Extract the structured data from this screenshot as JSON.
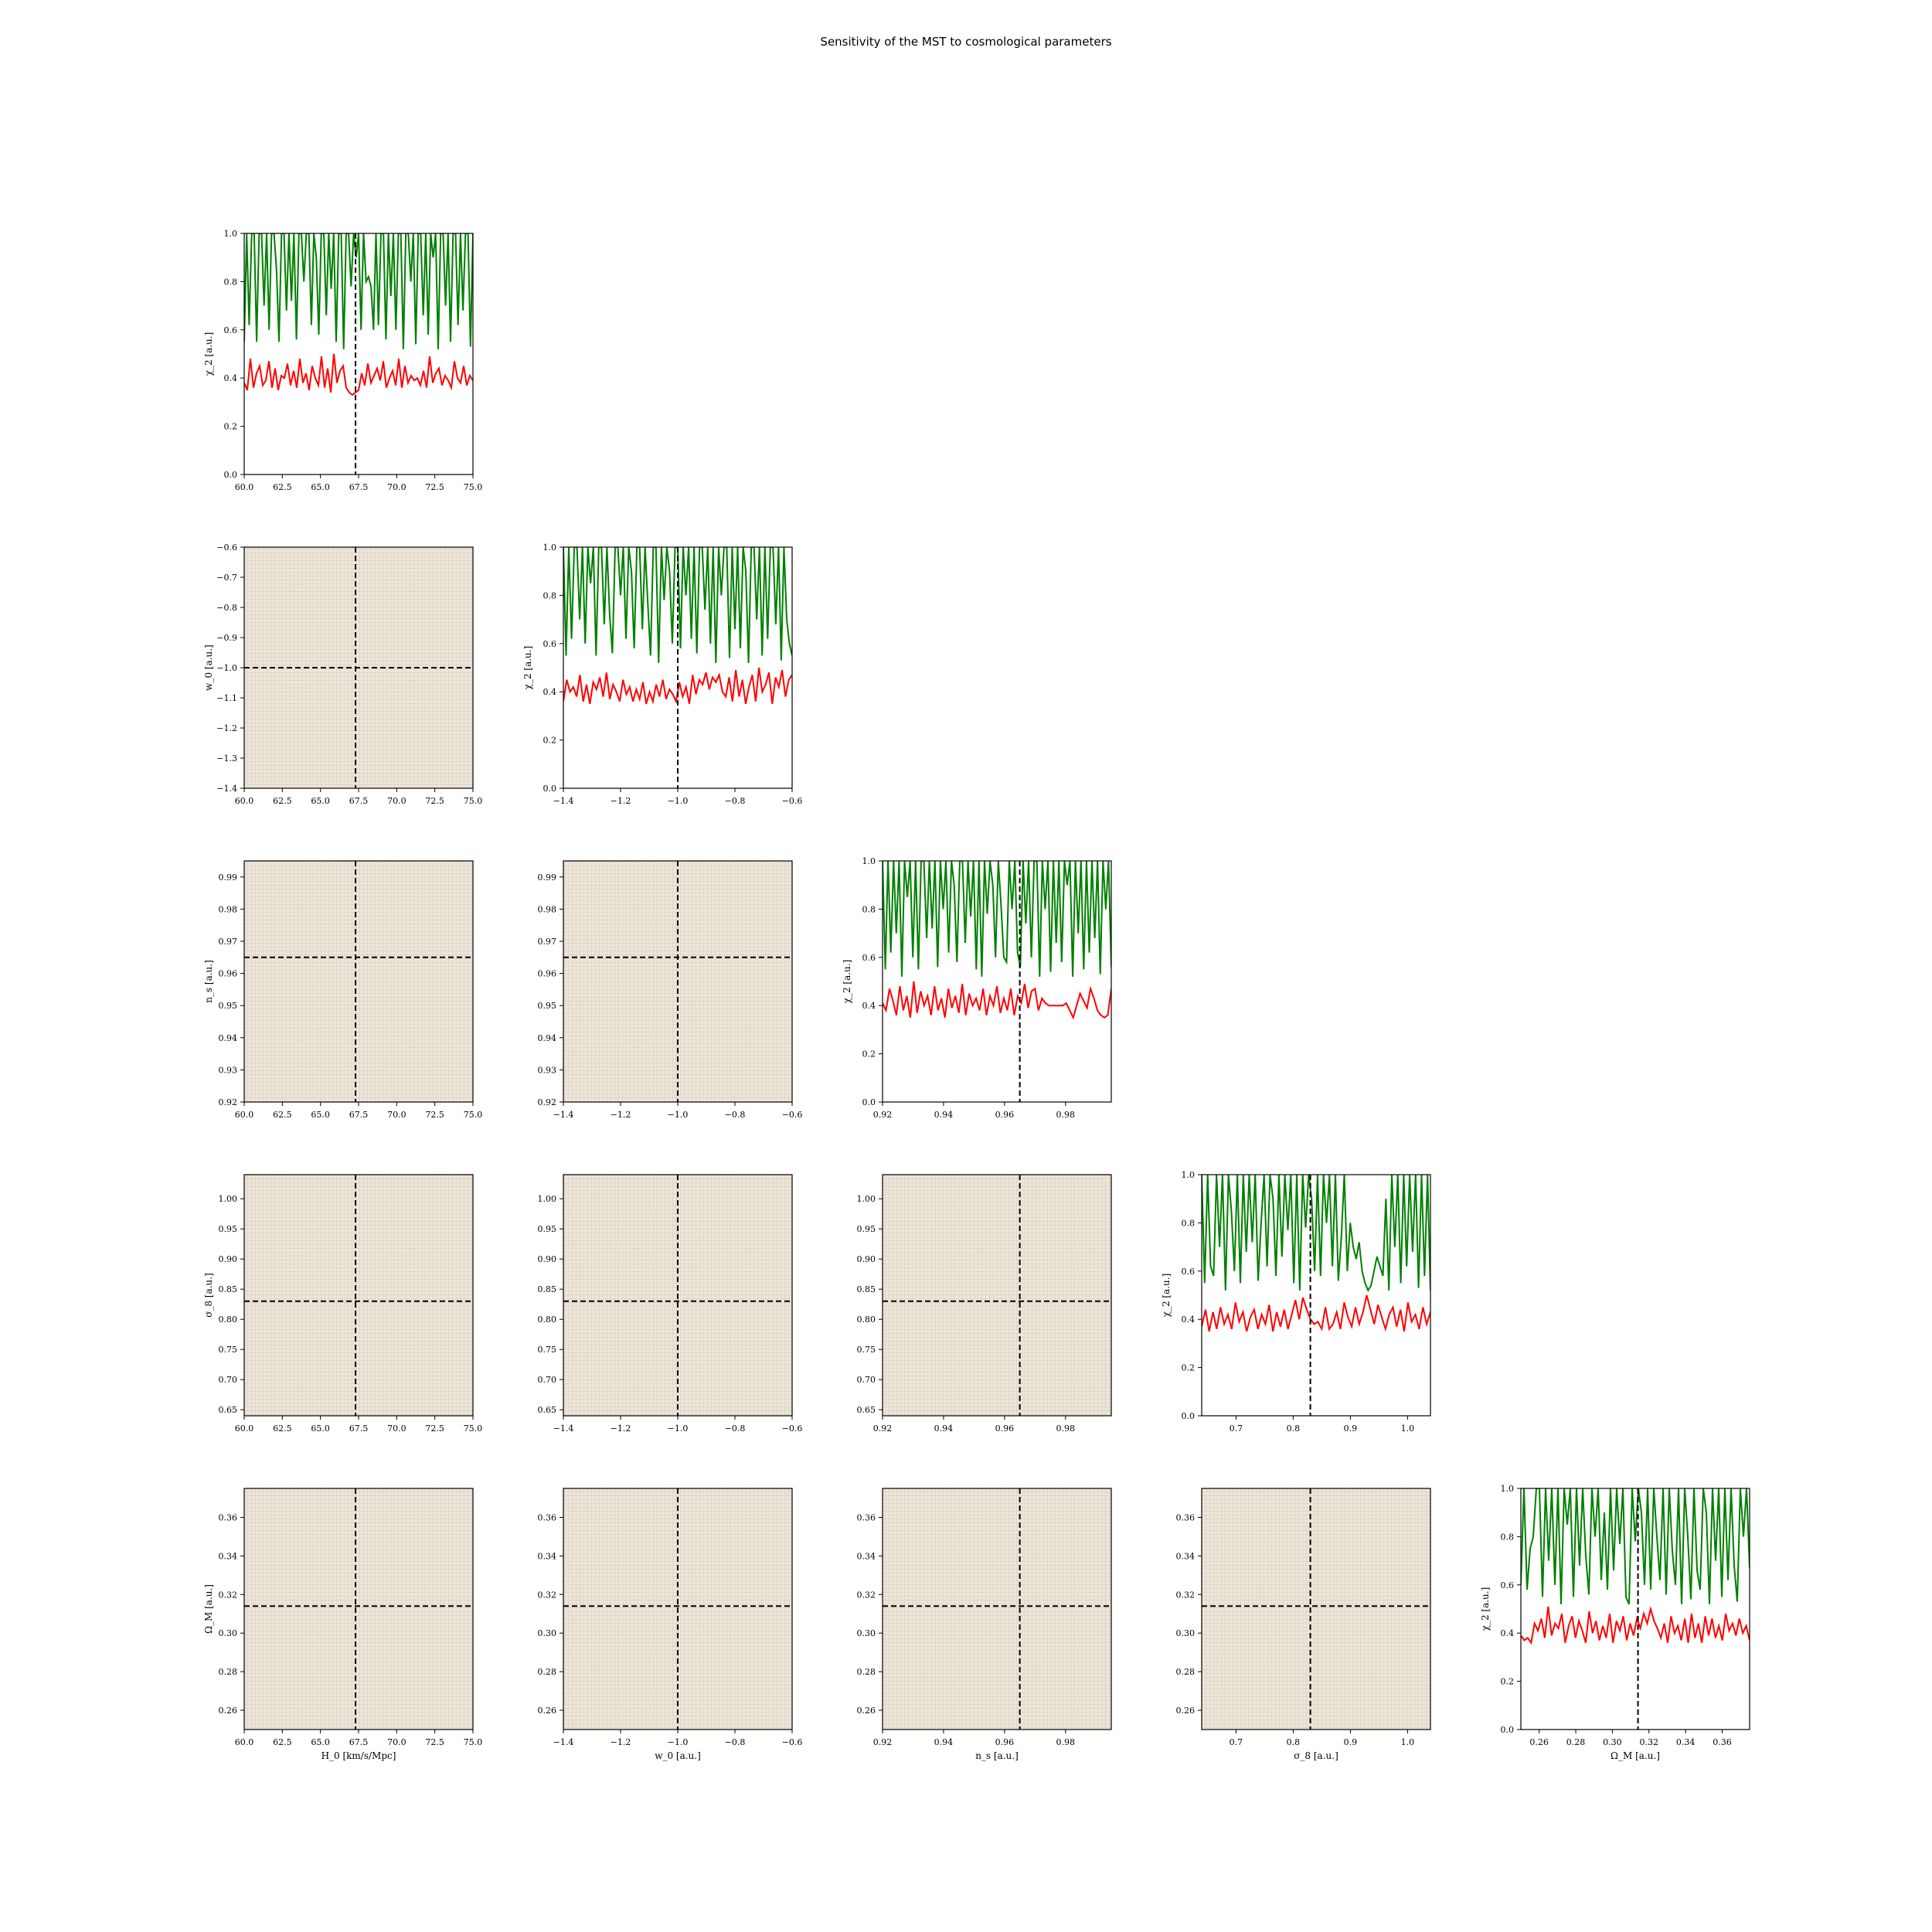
{
  "figure": {
    "title": "Sensitivity of the MST to cosmological parameters"
  },
  "colors": {
    "series_high": "#008000",
    "series_low": "#ff0000",
    "fiducial_line": "#000000",
    "grid_fill": "#ebe6da",
    "grid_line_a": "#d3d8c5",
    "grid_line_b": "#efcdc4"
  },
  "chart_data": {
    "type": "line",
    "layout": "corner-plot",
    "parameters": [
      {
        "name": "H0",
        "label": "H_0 [km/s/Mpc]",
        "range": [
          60.0,
          75.0
        ],
        "fiducial": 67.3,
        "ticks": [
          "60.0",
          "62.5",
          "65.0",
          "67.5",
          "70.0",
          "72.5",
          "75.0"
        ],
        "tick_values": [
          60.0,
          62.5,
          65.0,
          67.5,
          70.0,
          72.5,
          75.0
        ]
      },
      {
        "name": "w0",
        "label": "w_0 [a.u.]",
        "range": [
          -1.4,
          -0.6
        ],
        "fiducial": -1.0,
        "ticks": [
          "−1.4",
          "−1.2",
          "−1.0",
          "−0.8",
          "−0.6"
        ],
        "tick_values": [
          -1.4,
          -1.2,
          -1.0,
          -0.8,
          -0.6
        ],
        "y_ticks": [
          "−0.6",
          "−0.7",
          "−0.8",
          "−0.9",
          "−1.0",
          "−1.1",
          "−1.2",
          "−1.3",
          "−1.4"
        ],
        "y_tick_values": [
          -0.6,
          -0.7,
          -0.8,
          -0.9,
          -1.0,
          -1.1,
          -1.2,
          -1.3,
          -1.4
        ]
      },
      {
        "name": "ns",
        "label": "n_s [a.u.]",
        "range": [
          0.92,
          0.995
        ],
        "fiducial": 0.965,
        "ticks": [
          "0.92",
          "0.94",
          "0.96",
          "0.98"
        ],
        "tick_values": [
          0.92,
          0.94,
          0.96,
          0.98
        ],
        "y_ticks": [
          "0.99",
          "0.98",
          "0.97",
          "0.96",
          "0.95",
          "0.94",
          "0.93",
          "0.92"
        ],
        "y_tick_values": [
          0.99,
          0.98,
          0.97,
          0.96,
          0.95,
          0.94,
          0.93,
          0.92
        ]
      },
      {
        "name": "sigma8",
        "label": "σ_8 [a.u.]",
        "range": [
          0.64,
          1.04
        ],
        "fiducial": 0.83,
        "ticks": [
          "0.7",
          "0.8",
          "0.9",
          "1.0"
        ],
        "tick_values": [
          0.7,
          0.8,
          0.9,
          1.0
        ],
        "y_ticks": [
          "1.00",
          "0.95",
          "0.90",
          "0.85",
          "0.80",
          "0.75",
          "0.70",
          "0.65"
        ],
        "y_tick_values": [
          1.0,
          0.95,
          0.9,
          0.85,
          0.8,
          0.75,
          0.7,
          0.65
        ]
      },
      {
        "name": "OmegaM",
        "label": "Ω_M [a.u.]",
        "range": [
          0.25,
          0.375
        ],
        "fiducial": 0.314,
        "ticks": [
          "0.26",
          "0.28",
          "0.30",
          "0.32",
          "0.34",
          "0.36"
        ],
        "tick_values": [
          0.26,
          0.28,
          0.3,
          0.32,
          0.34,
          0.36
        ],
        "y_ticks": [
          "0.36",
          "0.34",
          "0.32",
          "0.30",
          "0.28",
          "0.26"
        ],
        "y_tick_values": [
          0.36,
          0.34,
          0.32,
          0.3,
          0.28,
          0.26
        ]
      }
    ],
    "diagonal": {
      "ylabel": "χ_2 [a.u.]",
      "ylim": [
        0.0,
        1.0
      ],
      "y_ticks": [
        "0.0",
        "0.2",
        "0.4",
        "0.6",
        "0.8",
        "1.0"
      ],
      "y_tick_values": [
        0.0,
        0.2,
        0.4,
        0.6,
        0.8,
        1.0
      ],
      "series": [
        {
          "color": "green",
          "typical_range": [
            0.5,
            1.0
          ]
        },
        {
          "color": "red",
          "typical_range": [
            0.33,
            0.5
          ]
        }
      ],
      "panels": [
        {
          "param": "H0",
          "green": [
            0.55,
            1.0,
            0.62,
            1.0,
            1.0,
            0.55,
            1.0,
            1.0,
            0.7,
            1.0,
            0.6,
            1.0,
            1.0,
            0.85,
            0.55,
            1.0,
            1.0,
            0.68,
            1.0,
            0.72,
            1.0,
            0.56,
            1.0,
            1.0,
            0.8,
            1.0,
            1.0,
            0.62,
            1.0,
            0.9,
            0.58,
            1.0,
            1.0,
            0.66,
            1.0,
            0.77,
            1.0,
            0.55,
            1.0,
            1.0,
            0.52,
            1.0,
            1.0,
            0.78,
            1.0,
            0.9,
            1.0,
            0.6,
            1.0,
            0.8,
            0.82,
            0.78,
            0.6,
            1.0,
            0.62,
            1.0,
            1.0,
            0.56,
            1.0,
            0.74,
            1.0,
            0.6,
            1.0,
            1.0,
            0.52,
            1.0,
            1.0,
            0.8,
            1.0,
            0.54,
            1.0,
            1.0,
            0.66,
            1.0,
            0.58,
            1.0,
            0.9,
            1.0,
            0.52,
            1.0,
            1.0,
            0.7,
            1.0,
            0.55,
            1.0,
            1.0,
            0.62,
            1.0,
            0.68,
            1.0,
            1.0,
            0.53,
            1.0
          ],
          "red": [
            0.38,
            0.35,
            0.48,
            0.36,
            0.42,
            0.45,
            0.37,
            0.39,
            0.47,
            0.36,
            0.44,
            0.35,
            0.41,
            0.4,
            0.46,
            0.37,
            0.43,
            0.36,
            0.48,
            0.38,
            0.42,
            0.35,
            0.45,
            0.4,
            0.37,
            0.49,
            0.36,
            0.44,
            0.34,
            0.5,
            0.38,
            0.43,
            0.45,
            0.36,
            0.34,
            0.33,
            0.34,
            0.35,
            0.42,
            0.37,
            0.46,
            0.38,
            0.41,
            0.44,
            0.39,
            0.47,
            0.36,
            0.4,
            0.43,
            0.37,
            0.48,
            0.36,
            0.45,
            0.38,
            0.41,
            0.39,
            0.4,
            0.37,
            0.43,
            0.36,
            0.49,
            0.38,
            0.42,
            0.44,
            0.37,
            0.41,
            0.39,
            0.36,
            0.47,
            0.4,
            0.38,
            0.45,
            0.37,
            0.41,
            0.39
          ]
        },
        {
          "param": "w0",
          "green": [
            1.0,
            0.55,
            1.0,
            0.62,
            1.0,
            1.0,
            0.7,
            1.0,
            0.6,
            1.0,
            0.85,
            1.0,
            0.55,
            1.0,
            1.0,
            0.68,
            1.0,
            0.72,
            0.56,
            1.0,
            1.0,
            0.8,
            1.0,
            0.62,
            1.0,
            0.9,
            0.58,
            1.0,
            1.0,
            0.66,
            1.0,
            0.77,
            0.55,
            1.0,
            1.0,
            0.52,
            1.0,
            0.78,
            1.0,
            0.9,
            0.6,
            1.0,
            1.0,
            0.58,
            1.0,
            0.8,
            1.0,
            0.62,
            1.0,
            0.56,
            1.0,
            1.0,
            0.74,
            1.0,
            0.6,
            1.0,
            0.52,
            1.0,
            0.8,
            1.0,
            1.0,
            0.54,
            1.0,
            0.66,
            1.0,
            0.58,
            1.0,
            0.9,
            0.52,
            1.0,
            1.0,
            0.7,
            1.0,
            0.55,
            1.0,
            0.62,
            1.0,
            1.0,
            0.68,
            1.0,
            0.53,
            1.0,
            0.7,
            0.6,
            0.55
          ],
          "red": [
            0.36,
            0.45,
            0.4,
            0.42,
            0.38,
            0.47,
            0.36,
            0.43,
            0.35,
            0.44,
            0.41,
            0.46,
            0.38,
            0.48,
            0.37,
            0.43,
            0.4,
            0.36,
            0.45,
            0.39,
            0.42,
            0.36,
            0.41,
            0.37,
            0.44,
            0.35,
            0.4,
            0.36,
            0.43,
            0.38,
            0.45,
            0.37,
            0.41,
            0.39,
            0.36,
            0.44,
            0.38,
            0.42,
            0.35,
            0.47,
            0.39,
            0.45,
            0.43,
            0.48,
            0.41,
            0.46,
            0.44,
            0.47,
            0.4,
            0.38,
            0.46,
            0.36,
            0.49,
            0.38,
            0.45,
            0.35,
            0.42,
            0.47,
            0.36,
            0.5,
            0.4,
            0.43,
            0.48,
            0.35,
            0.46,
            0.42,
            0.49,
            0.38,
            0.45,
            0.47
          ]
        },
        {
          "param": "ns",
          "green": [
            1.0,
            0.55,
            1.0,
            0.62,
            1.0,
            0.7,
            1.0,
            0.52,
            1.0,
            0.85,
            1.0,
            0.6,
            1.0,
            0.55,
            1.0,
            1.0,
            0.68,
            1.0,
            0.72,
            1.0,
            0.56,
            1.0,
            0.8,
            1.0,
            0.62,
            1.0,
            0.9,
            0.58,
            1.0,
            1.0,
            0.66,
            1.0,
            0.77,
            1.0,
            0.55,
            1.0,
            0.52,
            1.0,
            0.78,
            1.0,
            0.9,
            0.6,
            1.0,
            0.82,
            0.6,
            0.58,
            1.0,
            0.8,
            1.0,
            0.62,
            0.56,
            1.0,
            0.74,
            1.0,
            0.6,
            1.0,
            1.0,
            0.52,
            1.0,
            0.8,
            1.0,
            0.54,
            1.0,
            0.66,
            1.0,
            0.58,
            1.0,
            0.9,
            1.0,
            0.52,
            1.0,
            0.7,
            1.0,
            0.55,
            1.0,
            0.62,
            1.0,
            0.68,
            1.0,
            0.53,
            1.0,
            0.8,
            1.0,
            0.56
          ],
          "red": [
            0.41,
            0.38,
            0.47,
            0.42,
            0.36,
            0.48,
            0.38,
            0.44,
            0.35,
            0.5,
            0.37,
            0.46,
            0.4,
            0.44,
            0.36,
            0.48,
            0.38,
            0.43,
            0.35,
            0.47,
            0.39,
            0.44,
            0.37,
            0.49,
            0.36,
            0.45,
            0.4,
            0.43,
            0.38,
            0.47,
            0.36,
            0.44,
            0.4,
            0.48,
            0.37,
            0.43,
            0.38,
            0.47,
            0.36,
            0.44,
            0.41,
            0.49,
            0.39,
            0.46,
            0.47,
            0.38,
            0.43,
            0.41,
            0.4,
            0.4,
            0.4,
            0.4,
            0.4,
            0.41,
            0.38,
            0.35,
            0.4,
            0.45,
            0.42,
            0.39,
            0.47,
            0.43,
            0.38,
            0.36,
            0.35,
            0.36,
            0.47
          ]
        },
        {
          "param": "sigma8",
          "green": [
            1.0,
            0.55,
            1.0,
            0.62,
            0.58,
            1.0,
            0.7,
            1.0,
            0.52,
            1.0,
            0.85,
            0.6,
            1.0,
            0.55,
            1.0,
            0.68,
            1.0,
            0.72,
            1.0,
            0.56,
            0.8,
            1.0,
            0.62,
            1.0,
            0.9,
            0.58,
            1.0,
            0.66,
            1.0,
            0.77,
            1.0,
            0.55,
            1.0,
            0.52,
            1.0,
            0.78,
            1.0,
            0.9,
            0.6,
            1.0,
            0.58,
            1.0,
            0.8,
            1.0,
            0.62,
            1.0,
            0.56,
            0.74,
            1.0,
            0.6,
            0.8,
            0.7,
            0.65,
            0.72,
            0.6,
            0.55,
            0.52,
            0.54,
            0.6,
            0.66,
            0.62,
            0.58,
            0.9,
            0.52,
            1.0,
            0.7,
            1.0,
            0.55,
            1.0,
            0.62,
            1.0,
            0.68,
            1.0,
            0.53,
            1.0,
            0.58,
            1.0,
            0.52
          ],
          "red": [
            0.37,
            0.44,
            0.35,
            0.43,
            0.36,
            0.45,
            0.38,
            0.42,
            0.36,
            0.47,
            0.39,
            0.43,
            0.35,
            0.41,
            0.44,
            0.36,
            0.42,
            0.38,
            0.46,
            0.35,
            0.43,
            0.37,
            0.44,
            0.36,
            0.42,
            0.48,
            0.4,
            0.49,
            0.44,
            0.4,
            0.38,
            0.39,
            0.36,
            0.45,
            0.36,
            0.38,
            0.43,
            0.36,
            0.47,
            0.41,
            0.37,
            0.45,
            0.38,
            0.43,
            0.5,
            0.44,
            0.38,
            0.46,
            0.41,
            0.36,
            0.42,
            0.45,
            0.37,
            0.44,
            0.35,
            0.47,
            0.39,
            0.42,
            0.36,
            0.45,
            0.38,
            0.43
          ]
        },
        {
          "param": "OmegaM",
          "green": [
            0.6,
            1.0,
            0.58,
            0.75,
            0.8,
            1.0,
            1.0,
            0.55,
            1.0,
            0.7,
            1.0,
            0.6,
            1.0,
            0.52,
            1.0,
            0.85,
            1.0,
            0.55,
            1.0,
            0.68,
            1.0,
            0.72,
            0.56,
            1.0,
            0.8,
            1.0,
            0.62,
            0.9,
            0.58,
            1.0,
            0.66,
            1.0,
            0.77,
            1.0,
            0.55,
            0.52,
            1.0,
            0.78,
            1.0,
            0.9,
            0.6,
            1.0,
            0.58,
            1.0,
            0.8,
            0.62,
            1.0,
            0.56,
            1.0,
            0.74,
            0.6,
            1.0,
            0.52,
            1.0,
            0.8,
            0.54,
            1.0,
            0.66,
            0.58,
            1.0,
            0.9,
            0.52,
            1.0,
            0.7,
            1.0,
            0.55,
            1.0,
            0.62,
            1.0,
            0.68,
            0.53,
            1.0,
            0.8,
            1.0,
            0.67
          ],
          "red": [
            0.39,
            0.37,
            0.38,
            0.36,
            0.44,
            0.41,
            0.46,
            0.38,
            0.51,
            0.39,
            0.44,
            0.42,
            0.48,
            0.36,
            0.43,
            0.47,
            0.38,
            0.45,
            0.41,
            0.36,
            0.49,
            0.4,
            0.45,
            0.37,
            0.43,
            0.38,
            0.48,
            0.36,
            0.45,
            0.41,
            0.47,
            0.37,
            0.44,
            0.39,
            0.46,
            0.42,
            0.48,
            0.44,
            0.5,
            0.45,
            0.42,
            0.38,
            0.44,
            0.36,
            0.47,
            0.4,
            0.43,
            0.37,
            0.46,
            0.36,
            0.48,
            0.38,
            0.44,
            0.36,
            0.47,
            0.39,
            0.46,
            0.38,
            0.43,
            0.37,
            0.48,
            0.41,
            0.44,
            0.39,
            0.46,
            0.4,
            0.43,
            0.37
          ]
        }
      ]
    },
    "off_diagonal": {
      "description_values": "uniform grid of samples over both parameter ranges",
      "fiducial_crosshair": true,
      "panels": [
        {
          "x": "H0",
          "y": "w0"
        },
        {
          "x": "H0",
          "y": "ns"
        },
        {
          "x": "w0",
          "y": "ns"
        },
        {
          "x": "H0",
          "y": "sigma8"
        },
        {
          "x": "w0",
          "y": "sigma8"
        },
        {
          "x": "ns",
          "y": "sigma8"
        },
        {
          "x": "H0",
          "y": "OmegaM"
        },
        {
          "x": "w0",
          "y": "OmegaM"
        },
        {
          "x": "ns",
          "y": "OmegaM"
        },
        {
          "x": "sigma8",
          "y": "OmegaM"
        }
      ]
    },
    "grid": false
  }
}
